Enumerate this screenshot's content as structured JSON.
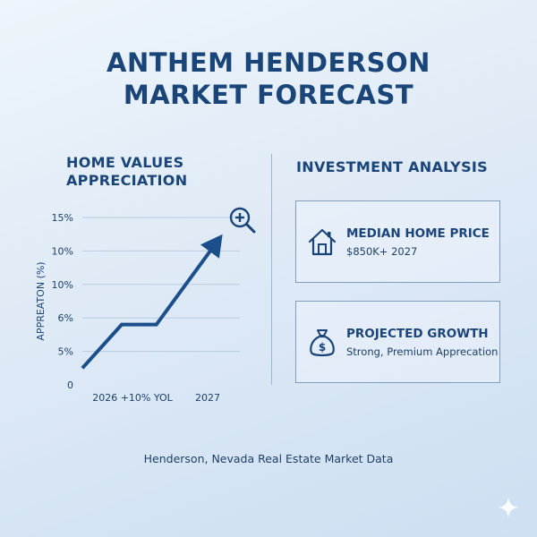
{
  "title": {
    "line1": "ANTHEM HENDERSON",
    "line2": "MARKET FORECAST"
  },
  "left_panel": {
    "title_line1": "HOME VALUES",
    "title_line2": "APPRECIATION"
  },
  "right_panel": {
    "title": "INVESTMENT ANALYSIS",
    "cards": [
      {
        "icon": "house-icon",
        "title": "MEDIAN HOME PRICE",
        "text": "$850K+ 2027"
      },
      {
        "icon": "money-bag-icon",
        "title": "PROJECTED GROWTH",
        "text": "Strong, Premium Apprecation"
      }
    ]
  },
  "footer": "Henderson, Nevada Real Estate Market Data",
  "chart_data": {
    "type": "line",
    "ylabel": "APPREATON (%)",
    "y_tick_labels": [
      "0",
      "5%",
      "6%",
      "10%",
      "10%",
      "15%"
    ],
    "x_tick_labels": [
      "2026 +10% YOL",
      "2027"
    ],
    "series": [
      {
        "points": [
          [
            0,
            0.5
          ],
          [
            0.25,
            1.8
          ],
          [
            0.47,
            1.8
          ],
          [
            0.89,
            4.5
          ]
        ]
      }
    ],
    "ylim": [
      0,
      5
    ],
    "grid": true,
    "arrow_end": true,
    "annotation_icon": "zoom-in-icon",
    "line_color": "#1a4f8c"
  }
}
